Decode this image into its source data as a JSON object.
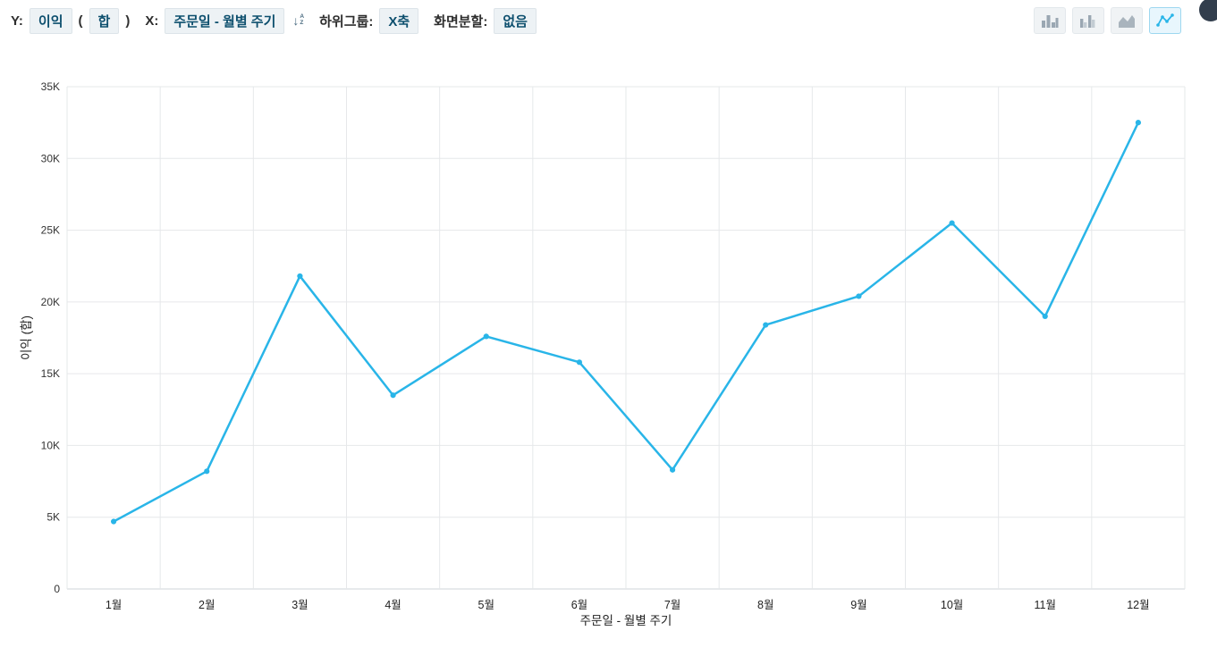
{
  "toolbar": {
    "y_label": "Y:",
    "y_field": "이익",
    "paren_open": "(",
    "y_agg": "합",
    "paren_close": ")",
    "x_label": "X:",
    "x_field": "주문일 - 월별 주기",
    "sort_icon": "sort-ascending-icon",
    "sort_letters_top": "A",
    "sort_letters_bottom": "Z",
    "subgroup_label": "하위그룹:",
    "subgroup_value": "X축",
    "split_label": "화면분할:",
    "split_value": "없음",
    "chart_types": [
      {
        "name": "bar-chart-icon",
        "selected": false
      },
      {
        "name": "grouped-bar-chart-icon",
        "selected": false
      },
      {
        "name": "area-chart-icon",
        "selected": false
      },
      {
        "name": "line-chart-icon",
        "selected": true
      }
    ],
    "corner_button": "avatar-circle"
  },
  "chart_data": {
    "type": "line",
    "categories": [
      "1월",
      "2월",
      "3월",
      "4월",
      "5월",
      "6월",
      "7월",
      "8월",
      "9월",
      "10월",
      "11월",
      "12월"
    ],
    "values": [
      4700,
      8200,
      21800,
      13500,
      17600,
      15800,
      8300,
      18400,
      20400,
      25500,
      19000,
      32500
    ],
    "series_name": "이익",
    "title": "",
    "xlabel": "주문일 - 월별 주기",
    "ylabel": "이익 (합)",
    "ylim": [
      0,
      35000
    ],
    "ytick_step": 5000,
    "ytick_labels": [
      "0",
      "5K",
      "10K",
      "15K",
      "20K",
      "25K",
      "30K",
      "35K"
    ],
    "grid": true,
    "legend": "none",
    "line_color": "#29b5e8"
  },
  "colors": {
    "accent_blue": "#29b5e8",
    "chip_bg": "#edf2f5",
    "chip_text": "#0d4f6e",
    "gridline": "#e6e8ea",
    "axis_text": "#222222",
    "icon_gray": "#9aa7b2",
    "corner_dark": "#323e4d"
  }
}
